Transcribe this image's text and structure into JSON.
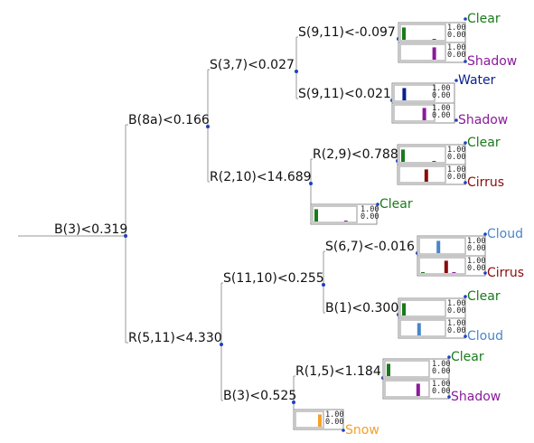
{
  "colors": {
    "Clear": "#1a7a1a",
    "Shadow": "#8b1a9b",
    "Water": "#0a1f8f",
    "Cirrus": "#8b0a0a",
    "Cloud": "#4a86c8",
    "Snow": "#f5a02a"
  },
  "scale": {
    "max": "1.00",
    "min": "0.00"
  },
  "splits": [
    {
      "id": "n1",
      "label": "B(3)<0.319"
    },
    {
      "id": "n2",
      "label": "B(8a)<0.166"
    },
    {
      "id": "n3",
      "label": "S(3,7)<0.027"
    },
    {
      "id": "n4",
      "label": "S(9,11)<-0.097"
    },
    {
      "id": "n5",
      "label": "S(9,11)<0.021"
    },
    {
      "id": "n6",
      "label": "R(2,10)<14.689"
    },
    {
      "id": "n7",
      "label": "R(2,9)<0.788"
    },
    {
      "id": "n8",
      "label": "R(5,11)<4.330"
    },
    {
      "id": "n9",
      "label": "S(11,10)<0.255"
    },
    {
      "id": "n10",
      "label": "S(6,7)<-0.016"
    },
    {
      "id": "n11",
      "label": "B(1)<0.300"
    },
    {
      "id": "n12",
      "label": "B(3)<0.525"
    },
    {
      "id": "n13",
      "label": "R(1,5)<1.184"
    }
  ],
  "leaves": [
    {
      "id": "l1",
      "class": "Clear",
      "bars": [
        [
          "Clear",
          0.85
        ],
        [
          "Shadow",
          0.05
        ]
      ]
    },
    {
      "id": "l2",
      "class": "Shadow",
      "bars": [
        [
          "Shadow",
          0.85
        ]
      ]
    },
    {
      "id": "l3",
      "class": "Water",
      "bars": [
        [
          "Water",
          0.85
        ]
      ]
    },
    {
      "id": "l4",
      "class": "Shadow",
      "bars": [
        [
          "Shadow",
          0.85
        ]
      ]
    },
    {
      "id": "l5",
      "class": "Clear",
      "bars": [
        [
          "Clear",
          0.85
        ],
        [
          "Shadow",
          0.05
        ]
      ]
    },
    {
      "id": "l6",
      "class": "Cirrus",
      "bars": [
        [
          "Cirrus",
          0.85
        ]
      ]
    },
    {
      "id": "l7",
      "class": "Clear",
      "bars": [
        [
          "Clear",
          0.85
        ],
        [
          "Shadow",
          0.05
        ]
      ]
    },
    {
      "id": "l8",
      "class": "Cloud",
      "bars": [
        [
          "Cloud",
          0.85
        ]
      ]
    },
    {
      "id": "l9",
      "class": "Cirrus",
      "bars": [
        [
          "Clear",
          0.05
        ],
        [
          "Cirrus",
          0.85
        ],
        [
          "Shadow",
          0.05
        ]
      ]
    },
    {
      "id": "l10",
      "class": "Clear",
      "bars": [
        [
          "Clear",
          0.85
        ]
      ]
    },
    {
      "id": "l11",
      "class": "Cloud",
      "bars": [
        [
          "Cloud",
          0.85
        ]
      ]
    },
    {
      "id": "l12",
      "class": "Clear",
      "bars": [
        [
          "Clear",
          0.85
        ]
      ]
    },
    {
      "id": "l13",
      "class": "Shadow",
      "bars": [
        [
          "Shadow",
          0.85
        ]
      ]
    },
    {
      "id": "l14",
      "class": "Snow",
      "bars": [
        [
          "Snow",
          0.85
        ]
      ]
    }
  ]
}
